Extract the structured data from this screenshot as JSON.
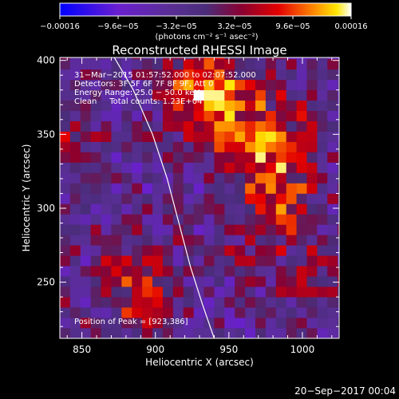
{
  "chart_data": {
    "type": "heatmap",
    "title": "Reconstructed RHESSI Image",
    "xlabel": "Heliocentric X (arcsec)",
    "ylabel": "Heliocentric Y (arcsec)",
    "xlim": [
      835,
      1025
    ],
    "ylim": [
      212,
      402
    ],
    "x_ticks": [
      850,
      900,
      950,
      1000
    ],
    "y_ticks": [
      250,
      300,
      350,
      400
    ],
    "colorbar": {
      "range": [
        -0.00016,
        0.00016
      ],
      "tick_values": [
        -0.00016,
        -9.6e-05,
        -3.2e-05,
        3.2e-05,
        9.6e-05,
        0.00016
      ],
      "tick_labels": [
        "−0.00016",
        "−9.6e−05",
        "−3.2e−05",
        "3.2e−05",
        "9.6e−05",
        "0.00016"
      ],
      "unit_label": "(photons cm⁻² s⁻¹ asec⁻²)"
    },
    "annotations": [
      "31−Mar−2015 01:57:52.000 to 02:07:52.000",
      "Detectors: 3F 5F 6F 7F 8F 9F, Att 0",
      "Energy Range: 25.0 − 50.0 keV",
      "Clean     Total counts: 1.23E+04"
    ],
    "peak_label": "Position of Peak = [923,386]",
    "peak": [
      923,
      386
    ],
    "limb_curve": [
      [
        872,
        402
      ],
      [
        885,
        380
      ],
      [
        898,
        350
      ],
      [
        908,
        320
      ],
      [
        916,
        290
      ],
      [
        924,
        260
      ],
      [
        932,
        235
      ],
      [
        940,
        212
      ]
    ],
    "intensity_sources": [
      {
        "x": 935,
        "y": 380,
        "amplitude": 1.0,
        "width": 28
      },
      {
        "x": 975,
        "y": 345,
        "amplitude": 0.75,
        "width": 30
      },
      {
        "x": 985,
        "y": 300,
        "amplitude": 0.5,
        "width": 28
      },
      {
        "x": 890,
        "y": 245,
        "amplitude": 0.55,
        "width": 28
      },
      {
        "x": 845,
        "y": 350,
        "amplitude": 0.4,
        "width": 18
      },
      {
        "x": 1010,
        "y": 250,
        "amplitude": 0.4,
        "width": 18
      },
      {
        "x": 960,
        "y": 265,
        "amplitude": 0.25,
        "width": 15
      }
    ],
    "colormap": [
      [
        -1.0,
        "#0000ff"
      ],
      [
        -0.6,
        "#6a1fd0"
      ],
      [
        -0.25,
        "#5a2e96"
      ],
      [
        0.0,
        "#4a2d7a"
      ],
      [
        0.25,
        "#8a0030"
      ],
      [
        0.5,
        "#e30000"
      ],
      [
        0.75,
        "#ff8c00"
      ],
      [
        0.9,
        "#ffe600"
      ],
      [
        1.0,
        "#ffffff"
      ]
    ]
  },
  "footer": {
    "timestamp": "20−Sep−2017 00:04"
  }
}
